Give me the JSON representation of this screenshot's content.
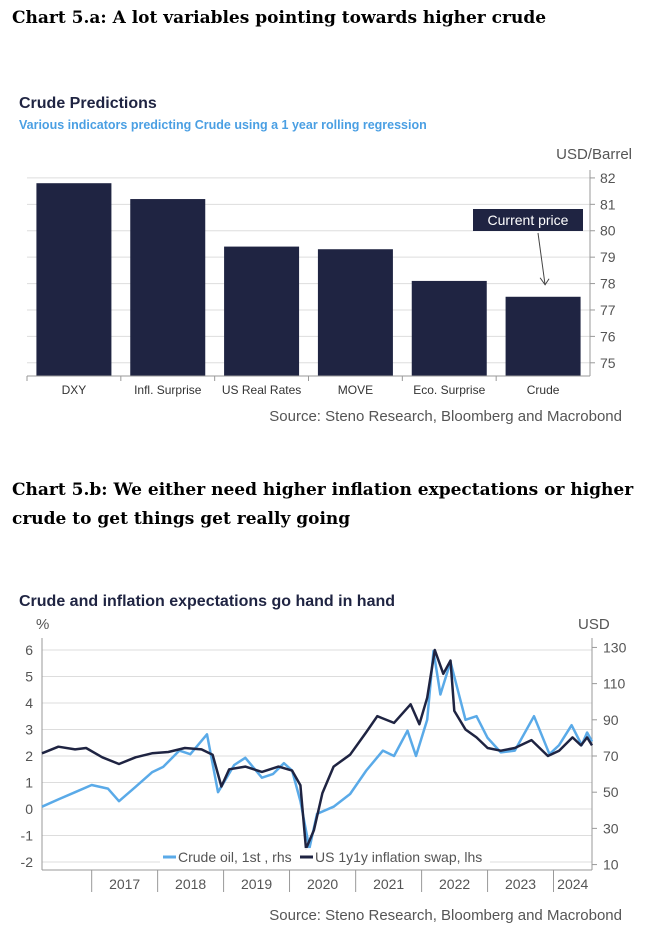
{
  "page": {
    "heading_a": "Chart 5.a: A lot variables pointing towards higher crude",
    "heading_b": "Chart 5.b: We either need higher inflation expectations or higher crude to get things get really going"
  },
  "colors": {
    "bar": "#1f2442",
    "crude_line": "#5aaae8",
    "swap_line": "#1f2442",
    "subtitle": "#4a9fe3",
    "title": "#1f2442",
    "axis_text": "#555555",
    "grid": "#dddddd"
  },
  "chart_data": [
    {
      "type": "bar",
      "title": "Crude Predictions",
      "subtitle": "Various indicators predicting Crude using a 1 year rolling regression",
      "unit_label": "USD/Barrel",
      "categories": [
        "DXY",
        "Infl. Surprise",
        "US Real Rates",
        "MOVE",
        "Eco. Surprise",
        "Crude"
      ],
      "values": [
        81.8,
        81.2,
        79.4,
        79.3,
        78.1,
        77.5
      ],
      "ylim": [
        74.5,
        82.3
      ],
      "yticks": [
        75,
        76,
        77,
        78,
        79,
        80,
        81,
        82
      ],
      "y_axis_side": "right",
      "grid": true,
      "annotation": {
        "text": "Current price",
        "target": "Crude"
      },
      "source": "Source: Steno Research, Bloomberg and Macrobond"
    },
    {
      "type": "line",
      "title": "Crude and inflation expectations go hand in hand",
      "left_unit": "%",
      "right_unit": "USD",
      "left_ylim": [
        -2.3,
        6.3
      ],
      "left_yticks": [
        -2,
        -1,
        0,
        1,
        2,
        3,
        4,
        5,
        6
      ],
      "right_ylim": [
        7,
        133
      ],
      "right_yticks": [
        10,
        30,
        50,
        70,
        90,
        110,
        130
      ],
      "x_ticks": [
        "2017",
        "2018",
        "2019",
        "2020",
        "2021",
        "2022",
        "2023",
        "2024"
      ],
      "x_range": [
        "2016-04-01",
        "2024-08-01"
      ],
      "grid": true,
      "legend_position": "bottom",
      "series": [
        {
          "name": "Crude oil, 1st , rhs",
          "axis": "right",
          "points": [
            [
              "2016-04-01",
              42
            ],
            [
              "2016-07-01",
              46
            ],
            [
              "2016-10-01",
              50
            ],
            [
              "2017-01-01",
              54
            ],
            [
              "2017-04-01",
              52
            ],
            [
              "2017-06-01",
              45
            ],
            [
              "2017-09-01",
              53
            ],
            [
              "2017-12-01",
              61
            ],
            [
              "2018-02-01",
              64
            ],
            [
              "2018-05-01",
              73
            ],
            [
              "2018-07-01",
              71
            ],
            [
              "2018-10-01",
              82
            ],
            [
              "2018-12-01",
              50
            ],
            [
              "2019-03-01",
              65
            ],
            [
              "2019-05-01",
              69
            ],
            [
              "2019-08-01",
              58
            ],
            [
              "2019-10-01",
              60
            ],
            [
              "2019-12-01",
              66
            ],
            [
              "2020-01-15",
              62
            ],
            [
              "2020-03-01",
              45
            ],
            [
              "2020-04-20",
              19
            ],
            [
              "2020-06-01",
              38
            ],
            [
              "2020-09-01",
              42
            ],
            [
              "2020-12-01",
              49
            ],
            [
              "2021-03-01",
              62
            ],
            [
              "2021-06-01",
              73
            ],
            [
              "2021-08-01",
              70
            ],
            [
              "2021-10-15",
              84
            ],
            [
              "2021-12-01",
              70
            ],
            [
              "2022-02-01",
              90
            ],
            [
              "2022-03-08",
              128
            ],
            [
              "2022-04-15",
              104
            ],
            [
              "2022-06-10",
              122
            ],
            [
              "2022-09-01",
              90
            ],
            [
              "2022-11-01",
              92
            ],
            [
              "2023-01-01",
              80
            ],
            [
              "2023-03-15",
              72
            ],
            [
              "2023-06-01",
              73
            ],
            [
              "2023-09-15",
              92
            ],
            [
              "2023-12-10",
              71
            ],
            [
              "2024-02-01",
              76
            ],
            [
              "2024-04-10",
              87
            ],
            [
              "2024-06-05",
              76
            ],
            [
              "2024-07-05",
              83
            ],
            [
              "2024-08-01",
              78
            ]
          ]
        },
        {
          "name": "US 1y1y inflation swap, lhs",
          "axis": "left",
          "points": [
            [
              "2016-04-01",
              2.1
            ],
            [
              "2016-07-01",
              2.35
            ],
            [
              "2016-10-01",
              2.25
            ],
            [
              "2016-12-01",
              2.3
            ],
            [
              "2017-03-01",
              1.95
            ],
            [
              "2017-06-01",
              1.7
            ],
            [
              "2017-09-01",
              1.95
            ],
            [
              "2017-12-01",
              2.1
            ],
            [
              "2018-03-01",
              2.15
            ],
            [
              "2018-06-01",
              2.3
            ],
            [
              "2018-09-01",
              2.25
            ],
            [
              "2018-11-01",
              2.05
            ],
            [
              "2018-12-20",
              0.85
            ],
            [
              "2019-02-01",
              1.5
            ],
            [
              "2019-05-01",
              1.6
            ],
            [
              "2019-08-01",
              1.4
            ],
            [
              "2019-11-01",
              1.6
            ],
            [
              "2020-01-15",
              1.45
            ],
            [
              "2020-03-01",
              0.9
            ],
            [
              "2020-04-01",
              -1.5
            ],
            [
              "2020-05-15",
              -0.8
            ],
            [
              "2020-07-01",
              0.6
            ],
            [
              "2020-09-01",
              1.6
            ],
            [
              "2020-12-01",
              2.05
            ],
            [
              "2021-03-01",
              2.9
            ],
            [
              "2021-05-01",
              3.5
            ],
            [
              "2021-08-01",
              3.25
            ],
            [
              "2021-11-01",
              3.95
            ],
            [
              "2021-12-20",
              3.2
            ],
            [
              "2022-02-01",
              4.2
            ],
            [
              "2022-03-15",
              6.0
            ],
            [
              "2022-05-01",
              5.1
            ],
            [
              "2022-06-10",
              5.6
            ],
            [
              "2022-07-01",
              3.7
            ],
            [
              "2022-09-01",
              3.0
            ],
            [
              "2022-11-01",
              2.7
            ],
            [
              "2023-01-01",
              2.3
            ],
            [
              "2023-03-15",
              2.2
            ],
            [
              "2023-06-01",
              2.3
            ],
            [
              "2023-09-01",
              2.6
            ],
            [
              "2023-12-01",
              2.0
            ],
            [
              "2024-02-01",
              2.2
            ],
            [
              "2024-04-15",
              2.7
            ],
            [
              "2024-06-01",
              2.4
            ],
            [
              "2024-07-05",
              2.7
            ],
            [
              "2024-08-01",
              2.4
            ]
          ]
        }
      ],
      "source": "Source: Steno Research, Bloomberg and Macrobond"
    }
  ]
}
